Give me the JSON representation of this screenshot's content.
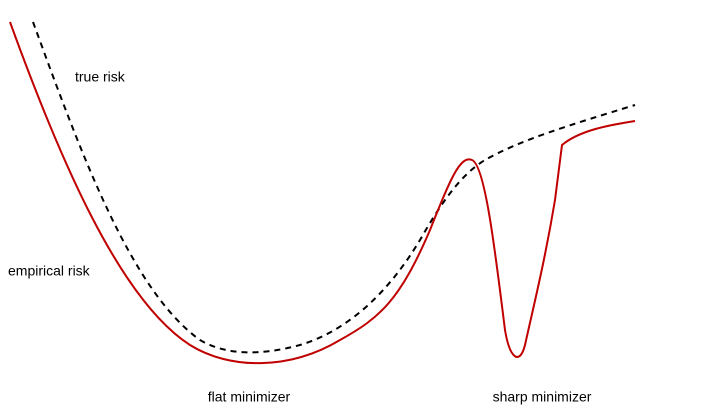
{
  "labels": {
    "true_risk": "true risk",
    "empirical_risk": "empirical risk",
    "flat_minimizer": "flat minimizer",
    "sharp_minimizer": "sharp minimizer"
  }
}
